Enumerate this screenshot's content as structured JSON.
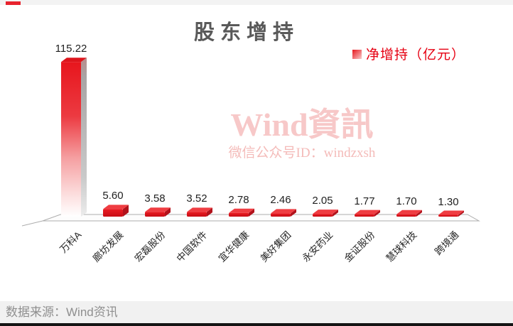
{
  "header": {
    "title": "股东增持"
  },
  "legend": {
    "label": "净增持（亿元）"
  },
  "watermark": {
    "line1": "Wind資訊",
    "line2": "微信公众号ID：windzxsh"
  },
  "footer": {
    "source": "数据来源：Wind资讯"
  },
  "colors": {
    "bar_red": "#e8191f",
    "bar_dark_red": "#b2121b",
    "legend_text_red": "#e60012",
    "title_gray": "#595959",
    "watermark_pink": "#f7c8c8",
    "footer_bg": "#f1f1f1",
    "footer_text_gray": "#8f8f8f",
    "accent_dash_red": "#e8232e"
  },
  "chart_data": {
    "type": "bar",
    "style": "3d-bar-red-gradient",
    "title": "股东增持",
    "legend_entries": [
      "净增持（亿元）"
    ],
    "legend_position": "top-right",
    "categories": [
      "万科A",
      "廊坊发展",
      "宏磊股份",
      "中国软件",
      "宜华健康",
      "美好集团",
      "永安药业",
      "金证股份",
      "慧球科技",
      "跨境通"
    ],
    "values": [
      115.22,
      5.6,
      3.58,
      3.52,
      2.78,
      2.46,
      2.05,
      1.77,
      1.7,
      1.3
    ],
    "value_labels": [
      "115.22",
      "5.60",
      "3.58",
      "3.52",
      "2.78",
      "2.46",
      "2.05",
      "1.77",
      "1.70",
      "1.30"
    ],
    "xlabel": "",
    "ylabel": "净增持（亿元）",
    "ylim": [
      0,
      120
    ],
    "grid": false
  }
}
